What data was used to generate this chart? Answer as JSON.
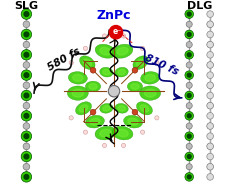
{
  "title_center": "ZnPc",
  "title_left": "SLG",
  "title_right": "DLG",
  "title_center_color": "#0000dd",
  "title_side_color": "#000000",
  "label_left": "580 fs",
  "label_right": "810 fs",
  "electron_label": "e⁻",
  "electron_color": "#dd0000",
  "bg_color": "#ffffff",
  "green_blob_color": "#33cc00",
  "green_blob_edge": "#229900",
  "graphene_line_color": "#aaaaaa",
  "graphene_green_color": "#33cc00",
  "graphene_gray_color": "#bbbbbb",
  "figsize": [
    2.28,
    1.89
  ],
  "dpi": 100
}
